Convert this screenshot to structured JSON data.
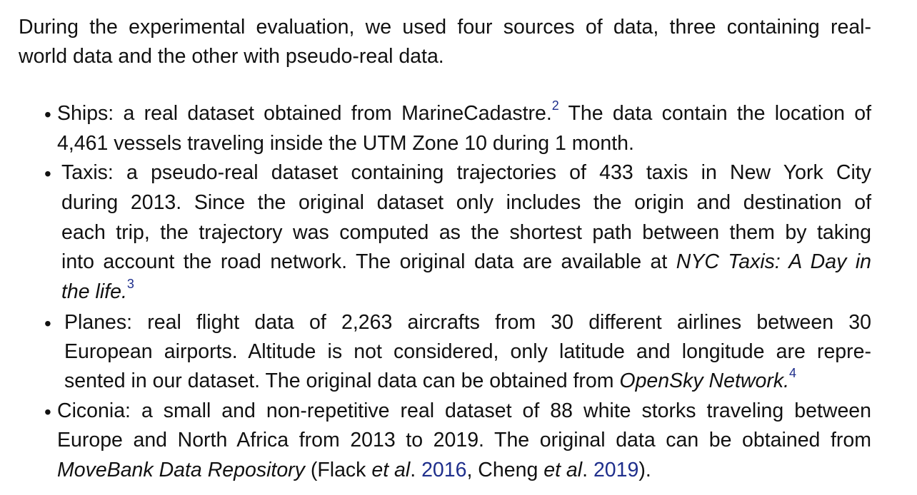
{
  "intro": {
    "line1": "During the experimental evaluation, we used four sources of data, three containing real-",
    "line2": "world data and the other with pseudo-real data."
  },
  "bullet_char": "•",
  "items": [
    {
      "lines": [
        {
          "a": "Ships: a real dataset obtained from MarineCadastre.",
          "sup": "2",
          "b": " The data contain the location of"
        },
        {
          "a": "4,461 vessels traveling inside the UTM Zone 10 during 1 month."
        }
      ]
    },
    {
      "lines": [
        {
          "a": "Taxis: a pseudo-real dataset containing trajectories of 433 taxis in New York City"
        },
        {
          "a": "during 2013. Since the original dataset only includes the origin and destination of"
        },
        {
          "a": "each trip, the trajectory was computed as the shortest path between them by taking"
        },
        {
          "a": "into account the road network. The original data are available at ",
          "i": "NYC Taxis: A Day in"
        },
        {
          "i": "the life.",
          "sup": "3"
        }
      ]
    },
    {
      "lines": [
        {
          "a": "Planes: real flight data of 2,263 aircrafts from 30 different airlines between 30"
        },
        {
          "a": "European airports. Altitude is not considered, only latitude and longitude are repre-"
        },
        {
          "a": "sented in our dataset. The original data can be obtained from ",
          "i": "OpenSky Network.",
          "sup": "4"
        }
      ]
    },
    {
      "lines": [
        {
          "a": "Ciconia: a small and non-repetitive real dataset of 88 white storks traveling between"
        },
        {
          "a": "Europe and North Africa from 2013 to 2019. The original data can be obtained from"
        },
        {
          "i": "MoveBank Data Repository",
          "a": " (Flack ",
          "i2": "et al",
          "b": ". ",
          "r1": "2016",
          "c": ", Cheng ",
          "i3": "et al",
          "d": ". ",
          "r2": "2019",
          "e": ")."
        }
      ]
    }
  ]
}
